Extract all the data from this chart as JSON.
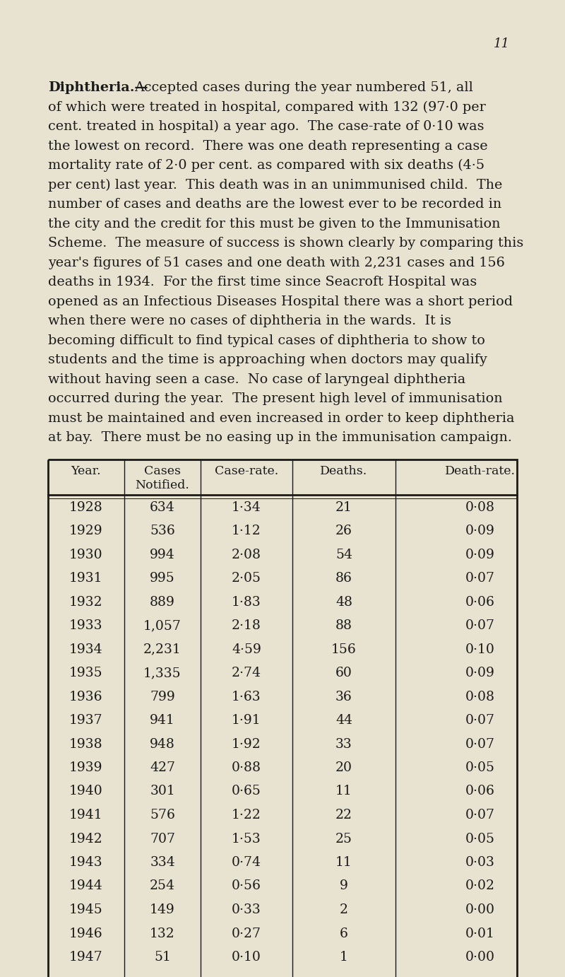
{
  "page_number": "11",
  "background_color": "#e8e3d0",
  "text_color": "#1a1a1a",
  "title_word": "Diphtheria.",
  "body_text": "Accepted cases during the year numbered 51, all of which were treated in hospital, compared with 132 (97·0 per cent. treated in hospital) a year ago.  The case-rate of 0·10 was the lowest on record.  There was one death representing a case mortality rate of 2·0 per cent. as compared with six deaths (4·5 per cent) last year.  This death was in an unimmunised child.  The number of cases and deaths are the lowest ever to be recorded in the city and the credit for this must be given to the Immunisation Scheme.  The measure of success is shown clearly by comparing this year's figures of 51 cases and one death with 2,231 cases and 156 deaths in 1934.  For the first time since Seacroft Hospital was opened as an Infectious Diseases Hospital there was a short period when there were no cases of diphtheria in the wards.  It is becoming difficult to find typical cases of diphtheria to show to students and the time is approaching when doctors may qualify without having seen a case.  No case of laryngeal diphtheria occurred during the year.  The present high level of immunisation must be maintained and even increased in order to keep diphtheria at bay.  There must be no easing up in the immunisation campaign.",
  "table_headers": [
    "Year.",
    "Cases\nNotified.",
    "Case-rate.",
    "Deaths.",
    "Death-rate."
  ],
  "table_data": [
    [
      "1928",
      "634",
      "1·34",
      "21",
      "0·08"
    ],
    [
      "1929",
      "536",
      "1·12",
      "26",
      "0·09"
    ],
    [
      "1930",
      "994",
      "2·08",
      "54",
      "0·09"
    ],
    [
      "1931",
      "995",
      "2·05",
      "86",
      "0·07"
    ],
    [
      "1932",
      "889",
      "1·83",
      "48",
      "0·06"
    ],
    [
      "1933",
      "1,057",
      "2·18",
      "88",
      "0·07"
    ],
    [
      "1934",
      "2,231",
      "4·59",
      "156",
      "0·10"
    ],
    [
      "1935",
      "1,335",
      "2·74",
      "60",
      "0·09"
    ],
    [
      "1936",
      "799",
      "1·63",
      "36",
      "0·08"
    ],
    [
      "1937",
      "941",
      "1·91",
      "44",
      "0·07"
    ],
    [
      "1938",
      "948",
      "1·92",
      "33",
      "0·07"
    ],
    [
      "1939",
      "427",
      "0·88",
      "20",
      "0·05"
    ],
    [
      "1940",
      "301",
      "0·65",
      "11",
      "0·06"
    ],
    [
      "1941",
      "576",
      "1·22",
      "22",
      "0·07"
    ],
    [
      "1942",
      "707",
      "1·53",
      "25",
      "0·05"
    ],
    [
      "1943",
      "334",
      "0·74",
      "11",
      "0·03"
    ],
    [
      "1944",
      "254",
      "0·56",
      "9",
      "0·02"
    ],
    [
      "1945",
      "149",
      "0·33",
      "2",
      "0·00"
    ],
    [
      "1946",
      "132",
      "0·27",
      "6",
      "0·01"
    ],
    [
      "1947",
      "51",
      "0·10",
      "1",
      "0·00"
    ]
  ],
  "figsize": [
    8.0,
    13.82
  ],
  "dpi": 100
}
